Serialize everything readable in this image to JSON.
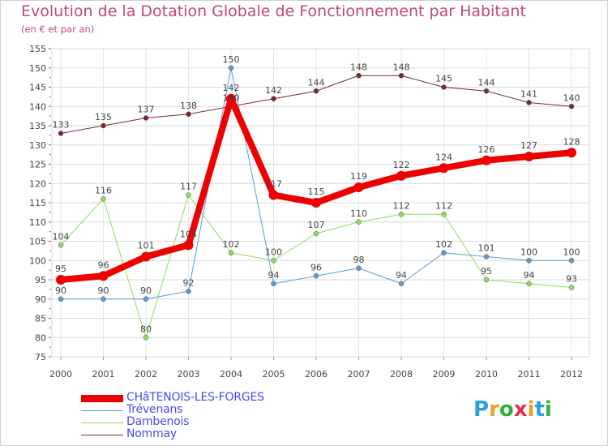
{
  "chart_data": {
    "type": "line",
    "title": "Evolution de la Dotation Globale de Fonctionnement par Habitant",
    "subtitle": "(en € et par an)",
    "xlabel": "",
    "ylabel": "",
    "ylim": [
      75,
      155
    ],
    "y_ticks": [
      75,
      80,
      85,
      90,
      95,
      100,
      105,
      110,
      115,
      120,
      125,
      130,
      135,
      140,
      145,
      150,
      155
    ],
    "categories": [
      "2000",
      "2001",
      "2002",
      "2003",
      "2004",
      "2005",
      "2006",
      "2007",
      "2008",
      "2009",
      "2010",
      "2011",
      "2012"
    ],
    "grid": true,
    "legend_position": "bottom-left",
    "series": [
      {
        "name": "Nommay",
        "color": "#7a2a2a",
        "width": 1,
        "marker": 3,
        "values": [
          133,
          135,
          137,
          138,
          140,
          142,
          144,
          148,
          148,
          145,
          144,
          141,
          140
        ]
      },
      {
        "name": "Dambenois",
        "color": "#8edc5a",
        "width": 1,
        "marker": 3,
        "values": [
          104,
          116,
          80,
          117,
          102,
          100,
          107,
          110,
          112,
          112,
          95,
          94,
          93
        ]
      },
      {
        "name": "Trévenans",
        "color": "#5b9cd2",
        "width": 1,
        "marker": 3,
        "values": [
          90,
          90,
          90,
          92,
          150,
          94,
          96,
          98,
          94,
          102,
          101,
          100,
          100
        ]
      },
      {
        "name": "CHâTENOIS-LES-FORGES",
        "color": "#ee0000",
        "width": 8,
        "marker": 6,
        "values": [
          95,
          96,
          101,
          104,
          142,
          117,
          115,
          119,
          122,
          124,
          126,
          127,
          128
        ]
      }
    ]
  },
  "legend": {
    "items": [
      {
        "label": "CHâTENOIS-LES-FORGES",
        "color": "#ee0000",
        "thickness": 9
      },
      {
        "label": "Trévenans",
        "color": "#5b9cd2",
        "thickness": 1
      },
      {
        "label": "Dambenois",
        "color": "#8edc5a",
        "thickness": 1
      },
      {
        "label": "Nommay",
        "color": "#7a2a2a",
        "thickness": 1
      }
    ]
  },
  "brand": {
    "letters": [
      "P",
      "r",
      "o",
      "x",
      "i",
      "t",
      "i"
    ],
    "colors": [
      "#2aa0e0",
      "#f0a020",
      "#30b040",
      "#e03050",
      "#f0a020",
      "#2aa0e0",
      "#30b040"
    ]
  }
}
